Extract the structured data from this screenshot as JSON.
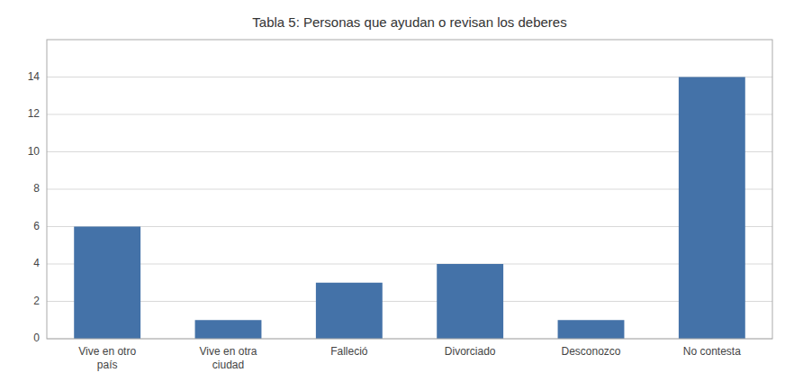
{
  "chart_data": {
    "type": "bar",
    "title": "Tabla 5: Personas que ayudan o revisan los deberes",
    "categories": [
      "Vive en otro\npaís",
      "Vive en otra\nciudad",
      "Falleció",
      "Divorciado",
      "Desconozco",
      "No contesta"
    ],
    "values": [
      6,
      1,
      3,
      4,
      1,
      14
    ],
    "color": "#4472a8",
    "ylim": [
      0,
      16
    ],
    "yticks": [
      0,
      2,
      4,
      6,
      8,
      10,
      12,
      14
    ],
    "grid": true
  }
}
